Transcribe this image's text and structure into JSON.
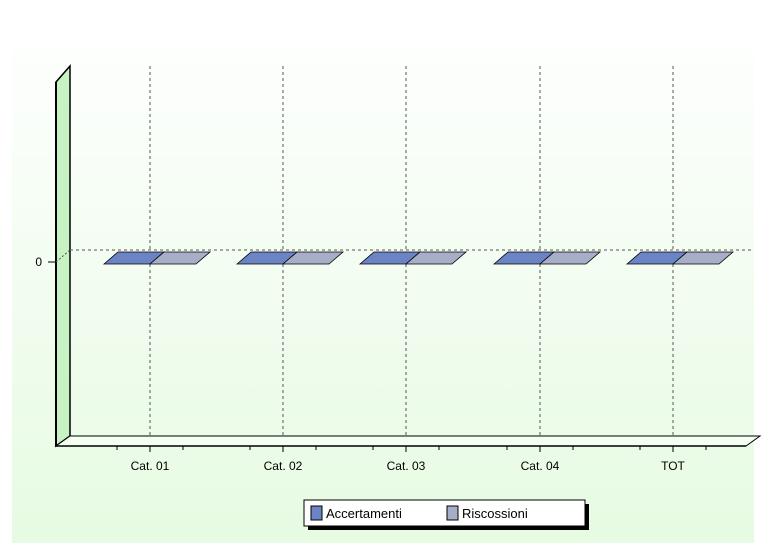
{
  "chart_data": {
    "type": "bar",
    "title": "",
    "xlabel": "",
    "ylabel": "",
    "categories": [
      "Cat. 01",
      "Cat. 02",
      "Cat. 03",
      "Cat. 04",
      "TOT"
    ],
    "series": [
      {
        "name": "Accertamenti",
        "values": [
          0,
          0,
          0,
          0,
          0
        ],
        "color": "#6a84c4"
      },
      {
        "name": "Riscossioni",
        "values": [
          0,
          0,
          0,
          0,
          0
        ],
        "color": "#a6aec8"
      }
    ],
    "y_ticks": [
      "0"
    ],
    "ylim": [
      -1,
      1
    ],
    "grid": true,
    "legend_position": "bottom",
    "style": "3d",
    "background_color": "#eafde8",
    "wall_color": "#c6f2c4"
  }
}
